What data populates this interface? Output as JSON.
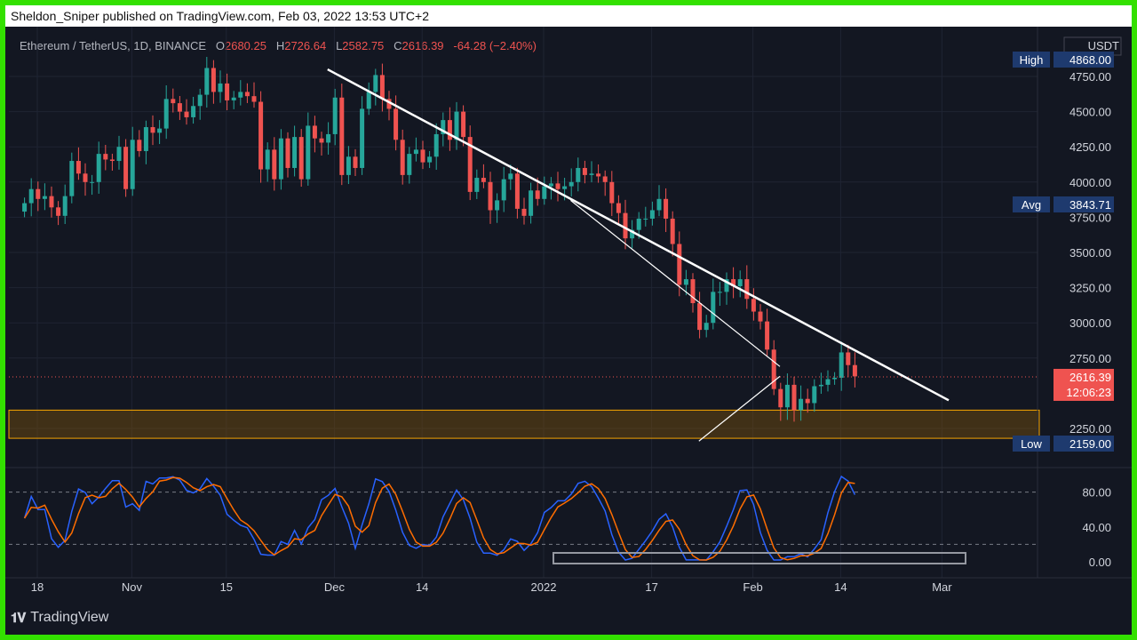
{
  "header": {
    "published_text": "Sheldon_Sniper published on TradingView.com, Feb 03, 2022 13:53 UTC+2"
  },
  "legend": {
    "symbol": "Ethereum / TetherUS, 1D, BINANCE",
    "open_label": "O",
    "open": "2680.25",
    "high_label": "H",
    "high": "2726.64",
    "low_label": "L",
    "low": "2582.75",
    "close_label": "C",
    "close": "2616.39",
    "change": "-64.28 (−2.40%)"
  },
  "currency": "USDT",
  "chart_data": {
    "type": "candlestick",
    "symbol": "Ethereum / TetherUS, 1D, BINANCE",
    "price_axis": {
      "ticks": [
        "4750.00",
        "4500.00",
        "4250.00",
        "4000.00",
        "3750.00",
        "3500.00",
        "3250.00",
        "3000.00",
        "2750.00",
        "2250.00"
      ],
      "range": [
        2080,
        5180
      ]
    },
    "time_axis": {
      "labels": [
        "18",
        "Nov",
        "15",
        "Dec",
        "14",
        "2022",
        "17",
        "Feb",
        "14",
        "Mar"
      ],
      "label_dates": [
        "2021-10-18",
        "2021-11-01",
        "2021-11-15",
        "2021-12-01",
        "2021-12-14",
        "2022-01-01",
        "2022-01-17",
        "2022-02-01",
        "2022-02-14",
        "2022-03-01"
      ]
    },
    "markers": {
      "high": {
        "label": "High",
        "value": "4868.00"
      },
      "avg": {
        "label": "Avg",
        "value": "3843.71"
      },
      "low": {
        "label": "Low",
        "value": "2159.00"
      },
      "last": {
        "value": "2616.39",
        "countdown": "12:06:23"
      }
    },
    "candles_close": [
      3850,
      3950,
      3880,
      3900,
      3820,
      3760,
      3900,
      4150,
      4060,
      4000,
      4000,
      4200,
      4160,
      4150,
      4250,
      3950,
      4300,
      4220,
      4390,
      4350,
      4380,
      4590,
      4560,
      4500,
      4460,
      4540,
      4620,
      4810,
      4640,
      4700,
      4580,
      4600,
      4640,
      4610,
      4570,
      4090,
      4230,
      4020,
      4310,
      4100,
      4320,
      4020,
      4400,
      4310,
      4280,
      4340,
      4600,
      4050,
      4180,
      4100,
      4520,
      4640,
      4760,
      4590,
      4520,
      4300,
      4050,
      4200,
      4230,
      4140,
      4180,
      4340,
      4440,
      4300,
      4500,
      4320,
      3930,
      4030,
      4000,
      3800,
      3870,
      4020,
      4060,
      3810,
      3760,
      3940,
      3880,
      3970,
      3990,
      3950,
      3970,
      4000,
      4100,
      4050,
      4060,
      4040,
      4000,
      3850,
      3780,
      3600,
      3660,
      3740,
      3740,
      3800,
      3880,
      3740,
      3560,
      3270,
      3310,
      3140,
      2950,
      3000,
      3220,
      3220,
      3310,
      3260,
      3310,
      3170,
      3080,
      3010,
      2810,
      2530,
      2400,
      2560,
      2380,
      2460,
      2430,
      2550,
      2560,
      2600,
      2610,
      2790,
      2700,
      2620
    ],
    "trendlines": [
      {
        "from": [
          "2021-11-30",
          4800
        ],
        "to": [
          "2022-03-02",
          2450
        ]
      },
      {
        "from": [
          "2022-01-05",
          3870
        ],
        "to": [
          "2022-02-05",
          2690
        ]
      },
      {
        "from": [
          "2022-01-24",
          2160
        ],
        "to": [
          "2022-02-05",
          2620
        ]
      }
    ],
    "support_zone": {
      "low": 2180,
      "high": 2380
    },
    "oscillator": {
      "type": "stochastic RSI",
      "ticks": [
        "80.00",
        "40.00",
        "0.00"
      ],
      "levels": [
        80,
        20
      ],
      "k_color": "#2962ff",
      "d_color": "#ff6d00"
    }
  },
  "colors": {
    "up": "#26a69a",
    "down": "#ef5350",
    "trendline": "#ffffff",
    "zone": "#f7a600",
    "frame": "#33e000",
    "label_bg": "#1e3a6e"
  },
  "footer": {
    "brand": "TradingView"
  }
}
